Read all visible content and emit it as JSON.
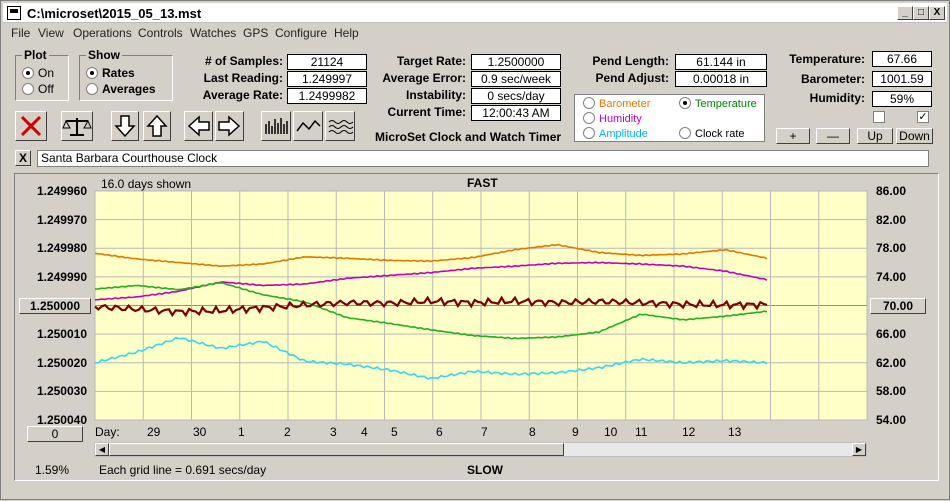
{
  "window": {
    "title": "C:\\microset\\2015_05_13.mst",
    "min": "_",
    "max": "□",
    "close": "X"
  },
  "menu": [
    "File",
    "View",
    "Operations",
    "Controls",
    "Watches",
    "GPS",
    "Configure",
    "Help"
  ],
  "plot": {
    "title": "Plot",
    "on": "On",
    "off": "Off",
    "selected": "On"
  },
  "show": {
    "title": "Show",
    "rates": "Rates",
    "averages": "Averages",
    "selected": "Rates"
  },
  "stats": {
    "samples_label": "# of Samples:",
    "samples": "21124",
    "last_label": "Last Reading:",
    "last": "1.249997",
    "avg_label": "Average Rate:",
    "avg": "1.2499982",
    "target_label": "Target Rate:",
    "target": "1.2500000",
    "err_label": "Average Error:",
    "err": "0.9 sec/week",
    "inst_label": "Instability:",
    "inst": "0 secs/day",
    "time_label": "Current Time:",
    "time": "12:00:43 AM",
    "pend_len_label": "Pend Length:",
    "pend_len": "61.144 in",
    "pend_adj_label": "Pend Adjust:",
    "pend_adj": "0.00018 in",
    "temp_label": "Temperature:",
    "temp": "67.66",
    "baro_label": "Barometer:",
    "baro": "1001.59",
    "hum_label": "Humidity:",
    "hum": "59%"
  },
  "app_title": "MicroSet Clock and Watch Timer",
  "sensors": {
    "barometer": "Barometer",
    "temperature": "Temperature",
    "humidity": "Humidity",
    "amplitude": "Amplitude",
    "clock_rate": "Clock rate",
    "selected": "Temperature"
  },
  "sensor_colors": {
    "barometer": "#e07800",
    "temperature": "#008000",
    "humidity": "#c000c0",
    "amplitude": "#00b0e0",
    "clock_rate": "#000000"
  },
  "buttons": {
    "plus": "+",
    "minus": "—",
    "up": "Up",
    "down": "Down",
    "x": "X",
    "zero": "0"
  },
  "checkbox_right": "✓",
  "clock_name": "Santa Barbara Courthouse Clock",
  "chart": {
    "days_shown": "16.0 days shown",
    "fast": "FAST",
    "slow": "SLOW",
    "percent": "1.59%",
    "grid_note": "Each grid line = 0.691 secs/day",
    "day_label": "Day:",
    "center_value": "1.250000",
    "right_center": "70.00",
    "y_left": [
      "1.249960",
      "1.249970",
      "1.249980",
      "1.249990",
      "1.250000",
      "1.250010",
      "1.250020",
      "1.250030",
      "1.250040"
    ],
    "y_right": [
      "86.00",
      "82.00",
      "78.00",
      "74.00",
      "70.00",
      "66.00",
      "62.00",
      "58.00",
      "54.00"
    ],
    "days": [
      "29",
      "30",
      "1",
      "2",
      "3",
      "4",
      "5",
      "6",
      "7",
      "8",
      "9",
      "10",
      "11",
      "12",
      "13"
    ]
  },
  "chart_data": {
    "type": "line",
    "x": [
      0,
      1,
      2,
      3,
      4,
      5,
      6,
      7,
      8,
      9,
      10,
      11,
      12,
      13,
      14,
      15,
      16
    ],
    "ylim": [
      1.25004,
      1.24996
    ],
    "y2lim": [
      54,
      86
    ],
    "series": [
      {
        "name": "Clock rate",
        "axis": "left",
        "values": [
          1.2500004,
          1.2500013,
          1.2500022,
          1.2500018,
          1.2500008,
          1.2499998,
          1.249999,
          1.2499992,
          1.2499985,
          1.249999,
          1.2499985,
          1.249999,
          1.2499986,
          1.249999,
          1.2499996,
          1.2499998,
          1.2499997
        ]
      },
      {
        "name": "Barometer",
        "axis": "right",
        "values": [
          77.3,
          76.5,
          76.0,
          75.5,
          75.8,
          76.8,
          76.6,
          76.3,
          76.2,
          76.7,
          77.8,
          78.5,
          77.4,
          77.0,
          77.2,
          77.8,
          76.6
        ]
      },
      {
        "name": "Temperature",
        "axis": "right",
        "values": [
          72.3,
          72.8,
          72.2,
          73.2,
          71.5,
          70.5,
          68.3,
          67.5,
          66.6,
          65.8,
          65.4,
          65.6,
          66.3,
          68.8,
          68.0,
          68.5,
          69.2
        ]
      },
      {
        "name": "Humidity",
        "axis": "right",
        "values": [
          70.8,
          71.2,
          72.0,
          73.3,
          72.8,
          73.0,
          73.8,
          74.2,
          74.6,
          75.2,
          75.5,
          75.9,
          76.0,
          75.8,
          75.5,
          74.8,
          73.6
        ]
      },
      {
        "name": "Amplitude",
        "axis": "right",
        "values": [
          62.0,
          63.5,
          65.5,
          64.0,
          65.0,
          62.2,
          61.8,
          61.0,
          59.8,
          60.8,
          60.4,
          60.6,
          61.3,
          62.5,
          62.0,
          62.3,
          62.0
        ]
      }
    ]
  }
}
